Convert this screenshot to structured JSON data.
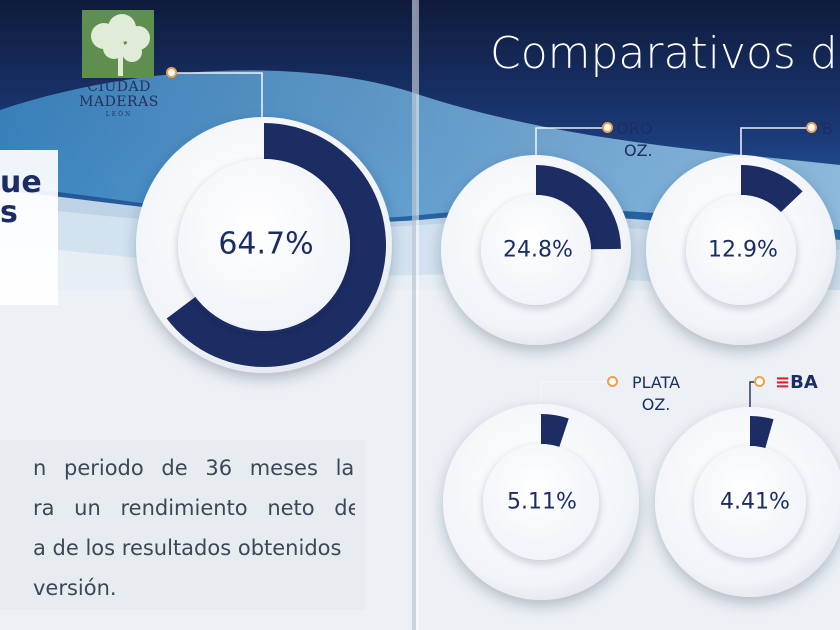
{
  "logo": {
    "name": "CIUDAD MADERAS",
    "city": "LEÓN"
  },
  "title": "Comparativos de",
  "side_fragment": [
    "ue",
    "s"
  ],
  "paragraph_lines": [
    "n periodo de 36 meses la",
    "ra un rendimiento neto de",
    "a de los resultados obtenidos",
    "versión."
  ],
  "donuts": [
    {
      "id": "main",
      "value_text": "64.7%",
      "fraction": 0.647,
      "label_lines": []
    },
    {
      "id": "oro",
      "value_text": "24.8%",
      "fraction": 0.248,
      "label_lines": [
        "ORO",
        "OZ."
      ]
    },
    {
      "id": "second",
      "value_text": "12.9%",
      "fraction": 0.129,
      "label_lines": [
        "B"
      ]
    },
    {
      "id": "plata",
      "value_text": "5.11%",
      "fraction": 0.0511,
      "label_lines": [
        "PLATA",
        "OZ."
      ]
    },
    {
      "id": "banco",
      "value_text": "4.41%",
      "fraction": 0.0441,
      "label_lines": [
        "BA"
      ]
    }
  ],
  "colors": {
    "navy": "#1c2d63",
    "accent_orange": "#f0a04a",
    "sky_blue": "#2d7ab7"
  }
}
